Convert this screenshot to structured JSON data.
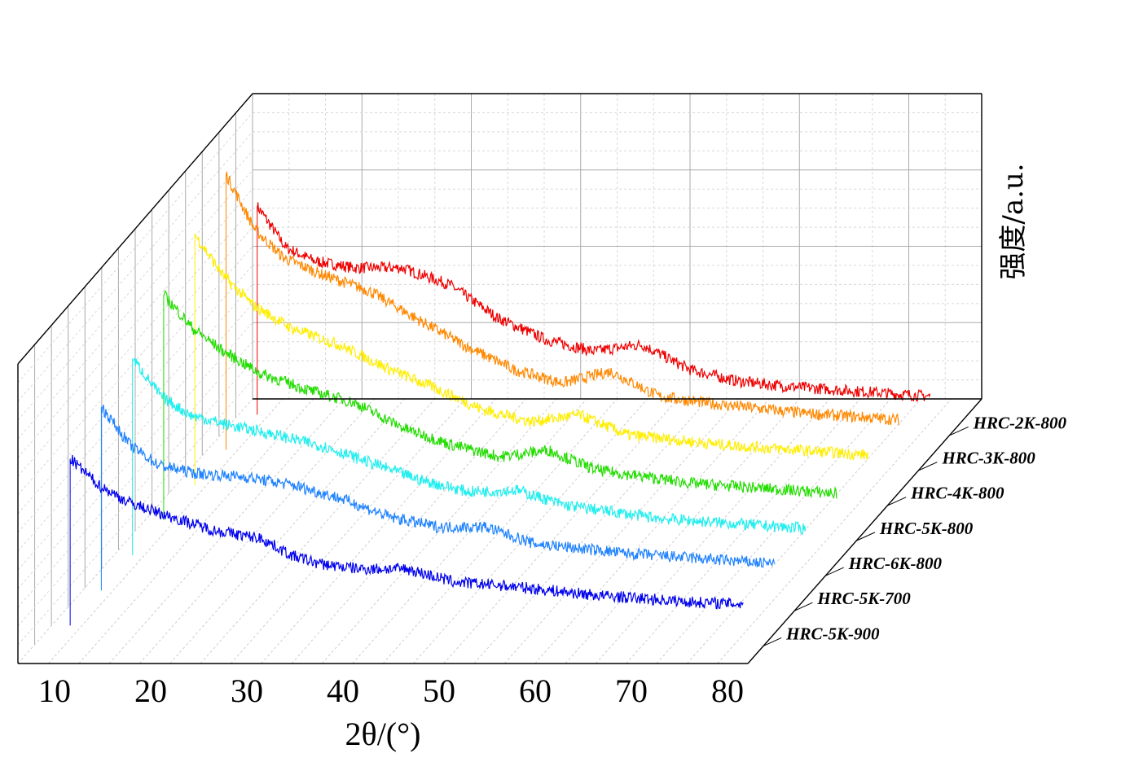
{
  "chart_data": {
    "type": "line",
    "projection": "3d-waterfall",
    "xlabel": "2θ/(°)",
    "ylabel": "强度/a.u.",
    "xlim": [
      10,
      80
    ],
    "x_ticks": [
      "10",
      "20",
      "30",
      "40",
      "50",
      "60",
      "70",
      "80"
    ],
    "grid": true,
    "legend": "series labels along depth axis, right side",
    "series": [
      {
        "name": "HRC-5K-900",
        "color": "#0000ee",
        "x": [
          10,
          13,
          16,
          20,
          25,
          30,
          33,
          36,
          40,
          45,
          50,
          55,
          60,
          65,
          70,
          75,
          80
        ],
        "y": [
          100,
          84,
          74,
          66,
          57,
          52,
          42,
          37,
          34,
          34,
          26,
          24,
          21,
          18,
          16,
          14,
          13
        ]
      },
      {
        "name": "HRC-5K-700",
        "color": "#1e82ff",
        "x": [
          10,
          13,
          16,
          20,
          25,
          30,
          35,
          40,
          45,
          50,
          55,
          60,
          65,
          70,
          75,
          80
        ],
        "y": [
          110,
          87,
          75,
          70,
          68,
          63,
          55,
          44,
          38,
          38,
          28,
          25,
          22,
          20,
          18,
          16
        ]
      },
      {
        "name": "HRC-6K-800",
        "color": "#22eeee",
        "x": [
          10,
          13,
          16,
          20,
          25,
          30,
          35,
          40,
          45,
          50,
          55,
          60,
          65,
          70,
          75,
          80
        ],
        "y": [
          118,
          95,
          84,
          78,
          72,
          65,
          55,
          45,
          38,
          39,
          30,
          26,
          22,
          20,
          18,
          16
        ]
      },
      {
        "name": "HRC-5K-800",
        "color": "#22dd00",
        "x": [
          10,
          13,
          16,
          20,
          25,
          30,
          35,
          40,
          45,
          50,
          55,
          60,
          65,
          70,
          75,
          80
        ],
        "y": [
          135,
          115,
          102,
          88,
          78,
          70,
          55,
          45,
          38,
          42,
          30,
          26,
          22,
          20,
          18,
          16
        ]
      },
      {
        "name": "HRC-4K-800",
        "color": "#ffee00",
        "x": [
          10,
          13,
          16,
          20,
          25,
          30,
          35,
          40,
          45,
          50,
          55,
          60,
          65,
          70,
          75,
          80
        ],
        "y": [
          150,
          125,
          108,
          94,
          84,
          70,
          58,
          45,
          38,
          42,
          30,
          27,
          24,
          22,
          20,
          18
        ]
      },
      {
        "name": "HRC-3K-800",
        "color": "#ff8800",
        "x": [
          10,
          13,
          16,
          20,
          25,
          30,
          35,
          40,
          45,
          50,
          55,
          60,
          65,
          70,
          75,
          80
        ],
        "y": [
          165,
          132,
          115,
          105,
          95,
          78,
          62,
          48,
          40,
          47,
          32,
          28,
          25,
          22,
          20,
          18
        ]
      },
      {
        "name": "HRC-2K-800",
        "color": "#ee0000",
        "x": [
          10,
          13,
          16,
          20,
          25,
          30,
          35,
          40,
          45,
          50,
          55,
          60,
          65,
          70,
          75,
          80
        ],
        "y": [
          125,
          100,
          92,
          88,
          88,
          78,
          58,
          45,
          38,
          42,
          27,
          20,
          17,
          15,
          13,
          11
        ]
      }
    ]
  }
}
